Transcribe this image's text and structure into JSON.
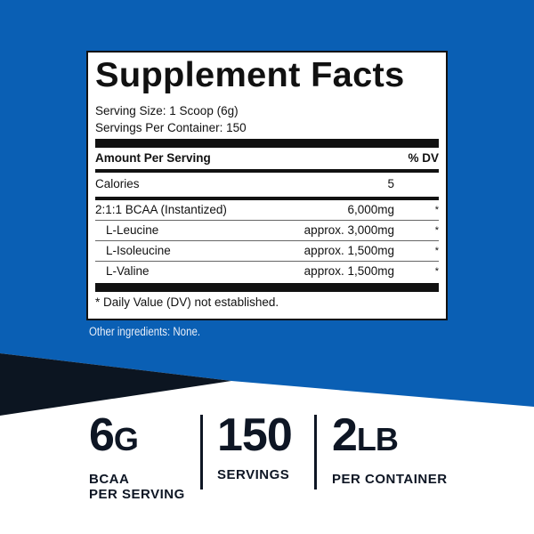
{
  "colors": {
    "blue": "#0a5fb4",
    "dark": "#0c1521",
    "white": "#ffffff"
  },
  "label": {
    "title": "Supplement Facts",
    "serving_size": "Serving Size: 1 Scoop (6g)",
    "servings_per_container": "Servings Per Container: 150",
    "amount_header": "Amount Per Serving",
    "dv_header": "% DV",
    "calories": {
      "name": "Calories",
      "amount": "5"
    },
    "rows": [
      {
        "name": "2:1:1 BCAA (Instantized)",
        "amount": "6,000mg",
        "dv": "*"
      },
      {
        "name": "L-Leucine",
        "amount": "approx. 3,000mg",
        "dv": "*"
      },
      {
        "name": "L-Isoleucine",
        "amount": "approx. 1,500mg",
        "dv": "*"
      },
      {
        "name": "L-Valine",
        "amount": "approx. 1,500mg",
        "dv": "*"
      }
    ],
    "footnote": "* Daily Value (DV) not established."
  },
  "other_ingredients": "Other ingredients: None.",
  "stats": [
    {
      "value": "6",
      "unit": "G",
      "caption1": "BCAA",
      "caption2": "PER SERVING"
    },
    {
      "value": "150",
      "unit": "",
      "caption1": "SERVINGS",
      "caption2": ""
    },
    {
      "value": "2",
      "unit": "LB",
      "caption1": "PER CONTAINER",
      "caption2": ""
    }
  ]
}
